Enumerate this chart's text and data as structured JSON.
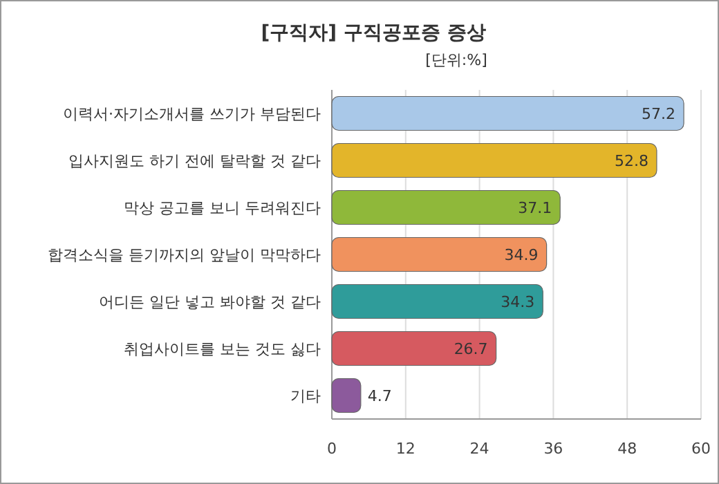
{
  "chart_data": {
    "type": "bar",
    "orientation": "horizontal",
    "title": "[구직자] 구직공포증 증상",
    "subtitle": "[단위:%]",
    "categories": [
      "이력서·자기소개서를 쓰기가 부담된다",
      "입사지원도 하기 전에 탈락할 것 같다",
      "막상 공고를 보니 두려워진다",
      "합격소식을 듣기까지의 앞날이 막막하다",
      "어디든 일단 넣고 봐야할 것 같다",
      "취업사이트를 보는 것도 싫다",
      "기타"
    ],
    "values": [
      57.2,
      52.8,
      37.1,
      34.9,
      34.3,
      26.7,
      4.7
    ],
    "colors": [
      "#a9c8e8",
      "#e3b52a",
      "#8fb83a",
      "#f0925e",
      "#2f9c9a",
      "#d65a60",
      "#8c5a9c"
    ],
    "xlim": [
      0,
      60
    ],
    "xticks": [
      0,
      12,
      24,
      36,
      48,
      60
    ],
    "grid": "x",
    "data_labels": true
  }
}
